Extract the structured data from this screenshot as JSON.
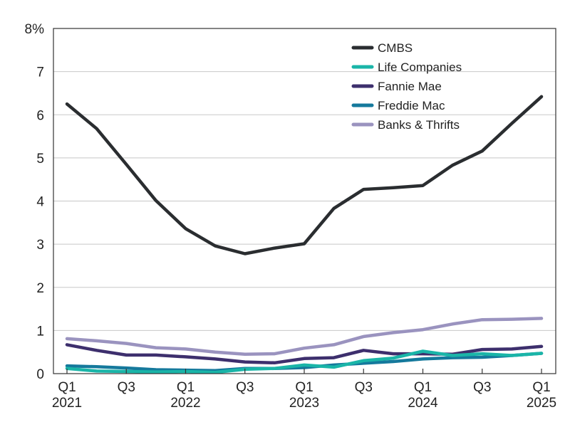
{
  "chart_data": {
    "type": "line",
    "title": "",
    "xlabel": "",
    "ylabel": "",
    "ylim": [
      0,
      8
    ],
    "y_ticks": [
      0,
      1,
      2,
      3,
      4,
      5,
      6,
      7,
      8
    ],
    "y_tick_labels": [
      "0",
      "1",
      "2",
      "3",
      "4",
      "5",
      "6",
      "7",
      "8%"
    ],
    "grid": true,
    "legend_position": "top-right",
    "x": [
      "Q1 2021",
      "Q2 2021",
      "Q3 2021",
      "Q4 2021",
      "Q1 2022",
      "Q2 2022",
      "Q3 2022",
      "Q4 2022",
      "Q1 2023",
      "Q2 2023",
      "Q3 2023",
      "Q4 2023",
      "Q1 2024",
      "Q2 2024",
      "Q3 2024",
      "Q4 2024",
      "Q1 2025"
    ],
    "x_tick_labels": [
      {
        "index": 0,
        "line1": "Q1",
        "line2": "2021"
      },
      {
        "index": 2,
        "line1": "Q3",
        "line2": ""
      },
      {
        "index": 4,
        "line1": "Q1",
        "line2": "2022"
      },
      {
        "index": 6,
        "line1": "Q3",
        "line2": ""
      },
      {
        "index": 8,
        "line1": "Q1",
        "line2": "2023"
      },
      {
        "index": 10,
        "line1": "Q3",
        "line2": ""
      },
      {
        "index": 12,
        "line1": "Q1",
        "line2": "2024"
      },
      {
        "index": 14,
        "line1": "Q3",
        "line2": ""
      },
      {
        "index": 16,
        "line1": "Q1",
        "line2": "2025"
      }
    ],
    "series": [
      {
        "name": "CMBS",
        "color": "#2a2d30",
        "values": [
          6.25,
          5.68,
          4.85,
          4.01,
          3.36,
          2.96,
          2.78,
          2.91,
          3.01,
          3.83,
          4.27,
          4.31,
          4.36,
          4.83,
          5.16,
          5.8,
          6.42
        ]
      },
      {
        "name": "Life Companies",
        "color": "#1ab5a8",
        "values": [
          0.12,
          0.06,
          0.05,
          0.04,
          0.05,
          0.03,
          0.1,
          0.12,
          0.2,
          0.15,
          0.3,
          0.36,
          0.52,
          0.42,
          0.46,
          0.42,
          0.47
        ]
      },
      {
        "name": "Fannie Mae",
        "color": "#3d2f6d",
        "values": [
          0.67,
          0.54,
          0.43,
          0.43,
          0.39,
          0.34,
          0.27,
          0.25,
          0.35,
          0.37,
          0.54,
          0.46,
          0.46,
          0.45,
          0.56,
          0.57,
          0.63
        ]
      },
      {
        "name": "Freddie Mac",
        "color": "#15799c",
        "values": [
          0.18,
          0.16,
          0.13,
          0.09,
          0.08,
          0.07,
          0.12,
          0.12,
          0.14,
          0.2,
          0.24,
          0.28,
          0.34,
          0.37,
          0.38,
          0.42,
          0.47
        ]
      },
      {
        "name": "Banks & Thrifts",
        "color": "#9a93bf",
        "values": [
          0.81,
          0.76,
          0.7,
          0.6,
          0.57,
          0.5,
          0.45,
          0.46,
          0.59,
          0.67,
          0.86,
          0.95,
          1.02,
          1.15,
          1.25,
          1.26,
          1.28
        ]
      }
    ]
  }
}
